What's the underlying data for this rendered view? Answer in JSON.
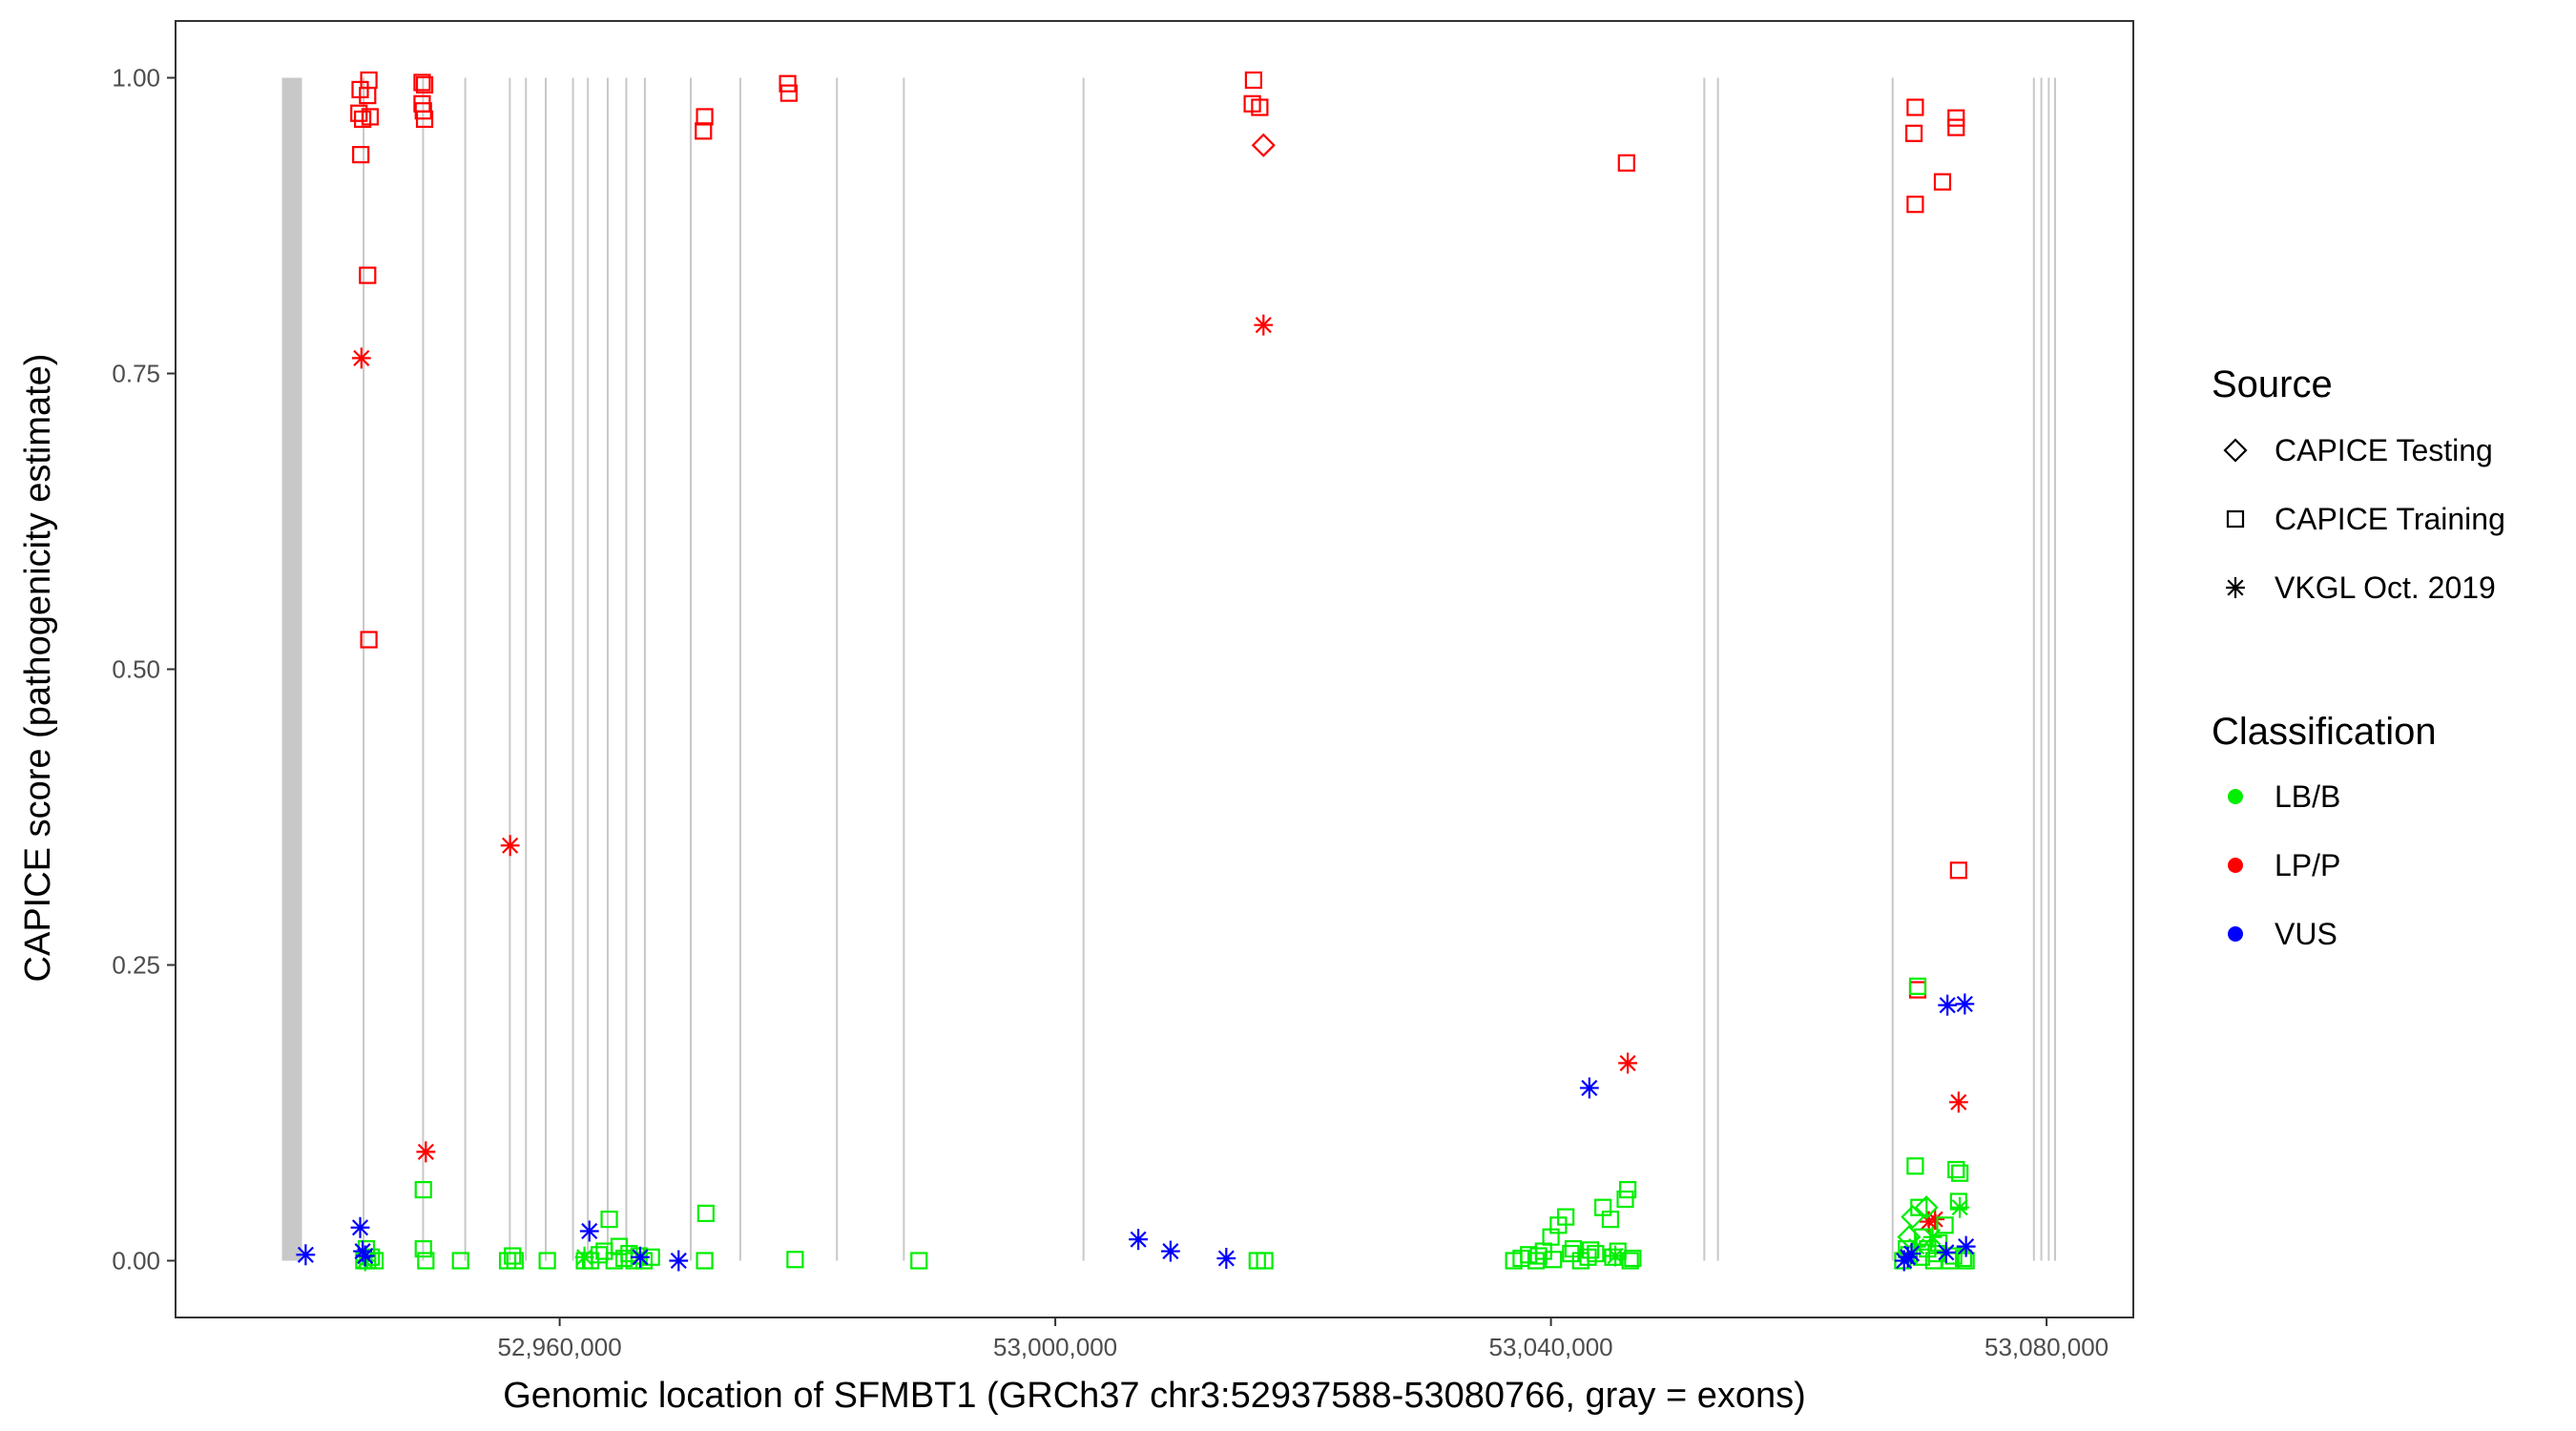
{
  "chart_data": {
    "type": "scatter",
    "xlabel": "Genomic location of SFMBT1 (GRCh37 chr3:52937588-53080766, gray = exons)",
    "ylabel": "CAPICE score (pathogenicity estimate)",
    "xlim": [
      52929000,
      53087000
    ],
    "ylim": [
      -0.048,
      1.048
    ],
    "x_ticks": [
      52960000,
      53000000,
      53040000,
      53080000
    ],
    "x_tick_labels": [
      "52,960,000",
      "53,000,000",
      "53,040,000",
      "53,080,000"
    ],
    "y_ticks": [
      0,
      0.25,
      0.5,
      0.75,
      1.0
    ],
    "y_tick_labels": [
      "0.00",
      "0.25",
      "0.50",
      "0.75",
      "1.00"
    ],
    "grid": false,
    "exon_color": "#c8c8c8",
    "exons": [
      [
        52937588,
        52939200
      ],
      [
        52944100,
        52944250
      ],
      [
        52948900,
        52949050
      ],
      [
        52952300,
        52952450
      ],
      [
        52955900,
        52956050
      ],
      [
        52957200,
        52957350
      ],
      [
        52958800,
        52958950
      ],
      [
        52961000,
        52961150
      ],
      [
        52962200,
        52962350
      ],
      [
        52963800,
        52963950
      ],
      [
        52965300,
        52965450
      ],
      [
        52966800,
        52966950
      ],
      [
        52970500,
        52970650
      ],
      [
        52974500,
        52974650
      ],
      [
        52982300,
        52982450
      ],
      [
        52987700,
        52987850
      ],
      [
        53002200,
        53002350
      ],
      [
        53052300,
        53052450
      ],
      [
        53053400,
        53053550
      ],
      [
        53067500,
        53067650
      ],
      [
        53078900,
        53079050
      ],
      [
        53079500,
        53079650
      ],
      [
        53080100,
        53080250
      ],
      [
        53080600,
        53080766
      ]
    ],
    "legend": {
      "position": "right",
      "source_title": "Source",
      "source_entries": [
        {
          "label": "CAPICE Testing",
          "shape": "diamond"
        },
        {
          "label": "CAPICE Training",
          "shape": "square"
        },
        {
          "label": "VKGL Oct. 2019",
          "shape": "asterisk"
        }
      ],
      "class_title": "Classification",
      "class_entries": [
        {
          "label": "LB/B",
          "color": "#00ee00"
        },
        {
          "label": "LP/P",
          "color": "#ff0000"
        },
        {
          "label": "VUS",
          "color": "#0000ff"
        }
      ]
    },
    "series": [
      {
        "source": "CAPICE Training",
        "classification": "LP/P",
        "points": [
          [
            52943800,
            0.97
          ],
          [
            52943900,
            0.99
          ],
          [
            52944100,
            0.965
          ],
          [
            52943950,
            0.935
          ],
          [
            52944600,
            0.998
          ],
          [
            52944500,
            0.985
          ],
          [
            52944700,
            0.967
          ],
          [
            52944500,
            0.833
          ],
          [
            52944600,
            0.525
          ],
          [
            52948900,
            0.996
          ],
          [
            52949100,
            0.994
          ],
          [
            52948900,
            0.978
          ],
          [
            52949000,
            0.972
          ],
          [
            52949100,
            0.965
          ],
          [
            52971700,
            0.967
          ],
          [
            52971600,
            0.955
          ],
          [
            52978400,
            0.995
          ],
          [
            52978500,
            0.987
          ],
          [
            53016000,
            0.998
          ],
          [
            53015900,
            0.978
          ],
          [
            53016500,
            0.975
          ],
          [
            53046100,
            0.928
          ],
          [
            53069400,
            0.975
          ],
          [
            53069300,
            0.953
          ],
          [
            53069400,
            0.893
          ],
          [
            53071600,
            0.912
          ],
          [
            53072700,
            0.966
          ],
          [
            53072700,
            0.958
          ],
          [
            53072900,
            0.33
          ],
          [
            53069600,
            0.229
          ]
        ]
      },
      {
        "source": "CAPICE Testing",
        "classification": "LP/P",
        "points": [
          [
            53016800,
            0.943
          ]
        ]
      },
      {
        "source": "VKGL Oct. 2019",
        "classification": "LP/P",
        "points": [
          [
            52944000,
            0.763
          ],
          [
            52956000,
            0.351
          ],
          [
            52949200,
            0.092
          ],
          [
            53016800,
            0.791
          ],
          [
            53046200,
            0.167
          ],
          [
            53072900,
            0.134
          ],
          [
            53070500,
            0.033
          ],
          [
            53071000,
            0.035
          ]
        ]
      },
      {
        "source": "CAPICE Training",
        "classification": "LB/B",
        "points": [
          [
            52944200,
            0.0
          ],
          [
            52944500,
            0.0
          ],
          [
            52945100,
            0.0
          ],
          [
            52944400,
            0.01
          ],
          [
            52944800,
            0.003
          ],
          [
            52949000,
            0.06
          ],
          [
            52949000,
            0.01
          ],
          [
            52949200,
            0.0
          ],
          [
            52952000,
            0.0
          ],
          [
            52955800,
            0.0
          ],
          [
            52956200,
            0.004
          ],
          [
            52956400,
            0.0
          ],
          [
            52959000,
            0.0
          ],
          [
            52962000,
            0.0
          ],
          [
            52962500,
            0.0
          ],
          [
            52963200,
            0.005
          ],
          [
            52963600,
            0.008
          ],
          [
            52964000,
            0.035
          ],
          [
            52964400,
            0.0
          ],
          [
            52964800,
            0.012
          ],
          [
            52965200,
            0.002
          ],
          [
            52965600,
            0.006
          ],
          [
            52966000,
            0.0
          ],
          [
            52966400,
            0.004
          ],
          [
            52966800,
            0.0
          ],
          [
            52967400,
            0.003
          ],
          [
            52971800,
            0.04
          ],
          [
            52971700,
            0.0
          ],
          [
            52979000,
            0.001
          ],
          [
            52989000,
            0.0
          ],
          [
            53016300,
            0.0
          ],
          [
            53016900,
            0.0
          ],
          [
            53037000,
            0.0
          ],
          [
            53037600,
            0.002
          ],
          [
            53038200,
            0.005
          ],
          [
            53038800,
            0.0
          ],
          [
            53039400,
            0.008
          ],
          [
            53040000,
            0.02
          ],
          [
            53040600,
            0.03
          ],
          [
            53041200,
            0.037
          ],
          [
            53041800,
            0.01
          ],
          [
            53042400,
            0.0
          ],
          [
            53043000,
            0.003
          ],
          [
            53043600,
            0.006
          ],
          [
            53044200,
            0.045
          ],
          [
            53044800,
            0.035
          ],
          [
            53045400,
            0.008
          ],
          [
            53046000,
            0.052
          ],
          [
            53046200,
            0.06
          ],
          [
            53046400,
            0.0
          ],
          [
            53046600,
            0.002
          ],
          [
            53039000,
            0.004
          ],
          [
            53040200,
            0.001
          ],
          [
            53041600,
            0.006
          ],
          [
            53043200,
            0.009
          ],
          [
            53045000,
            0.003
          ],
          [
            53068400,
            0.0
          ],
          [
            53068900,
            0.005
          ],
          [
            53069400,
            0.08
          ],
          [
            53069600,
            0.232
          ],
          [
            53069700,
            0.045
          ],
          [
            53070000,
            0.02
          ],
          [
            53070400,
            0.01
          ],
          [
            53070900,
            0.0
          ],
          [
            53071300,
            0.015
          ],
          [
            53071800,
            0.03
          ],
          [
            53072200,
            0.0
          ],
          [
            53072700,
            0.077
          ],
          [
            53073000,
            0.074
          ],
          [
            53072900,
            0.05
          ],
          [
            53073300,
            0.002
          ],
          [
            53073500,
            0.0
          ],
          [
            53068700,
            0.01
          ],
          [
            53069900,
            0.003
          ],
          [
            53071100,
            0.006
          ],
          [
            53072500,
            0.004
          ]
        ]
      },
      {
        "source": "CAPICE Testing",
        "classification": "LB/B",
        "points": [
          [
            53069200,
            0.037
          ],
          [
            53070300,
            0.045
          ],
          [
            53068900,
            0.02
          ]
        ]
      },
      {
        "source": "VKGL Oct. 2019",
        "classification": "LB/B",
        "points": [
          [
            52944300,
            0.0
          ],
          [
            52962000,
            0.003
          ],
          [
            53045200,
            0.004
          ],
          [
            53070800,
            0.02
          ],
          [
            53073000,
            0.045
          ],
          [
            53069500,
            0.012
          ]
        ]
      },
      {
        "source": "VKGL Oct. 2019",
        "classification": "VUS",
        "points": [
          [
            52939500,
            0.005
          ],
          [
            52943900,
            0.028
          ],
          [
            52944100,
            0.008
          ],
          [
            52944300,
            0.004
          ],
          [
            52962400,
            0.025
          ],
          [
            52966500,
            0.003
          ],
          [
            52969600,
            0.0
          ],
          [
            53006700,
            0.018
          ],
          [
            53009300,
            0.008
          ],
          [
            53013800,
            0.002
          ],
          [
            53043100,
            0.146
          ],
          [
            53068500,
            0.0
          ],
          [
            53068800,
            0.003
          ],
          [
            53069100,
            0.006
          ],
          [
            53072000,
            0.216
          ],
          [
            53073400,
            0.217
          ],
          [
            53071900,
            0.007
          ],
          [
            53073500,
            0.012
          ]
        ]
      }
    ]
  }
}
